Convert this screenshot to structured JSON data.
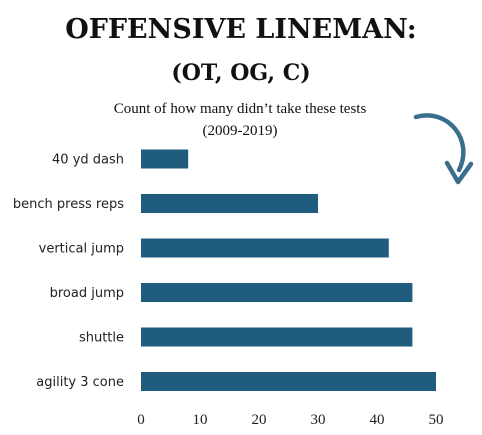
{
  "title": "OFFENSIVE LINEMAN:",
  "title_line2": "(OT, OG, C)",
  "subtitle_line1": "Count of how many didn’t take these tests",
  "subtitle_line2": "(2009-2019)",
  "colors": {
    "bar": "#1f5c7e",
    "arrow": "#3a6f8c"
  },
  "chart_data": {
    "type": "bar",
    "orientation": "horizontal",
    "categories": [
      "40 yd dash",
      "bench press reps",
      "vertical jump",
      "broad jump",
      "shuttle",
      "agility 3 cone"
    ],
    "values": [
      8,
      30,
      42,
      46,
      46,
      50
    ],
    "xlim": [
      0,
      50
    ],
    "xticks": [
      0,
      10,
      20,
      30,
      40,
      50
    ],
    "grid": false,
    "legend": "none"
  }
}
